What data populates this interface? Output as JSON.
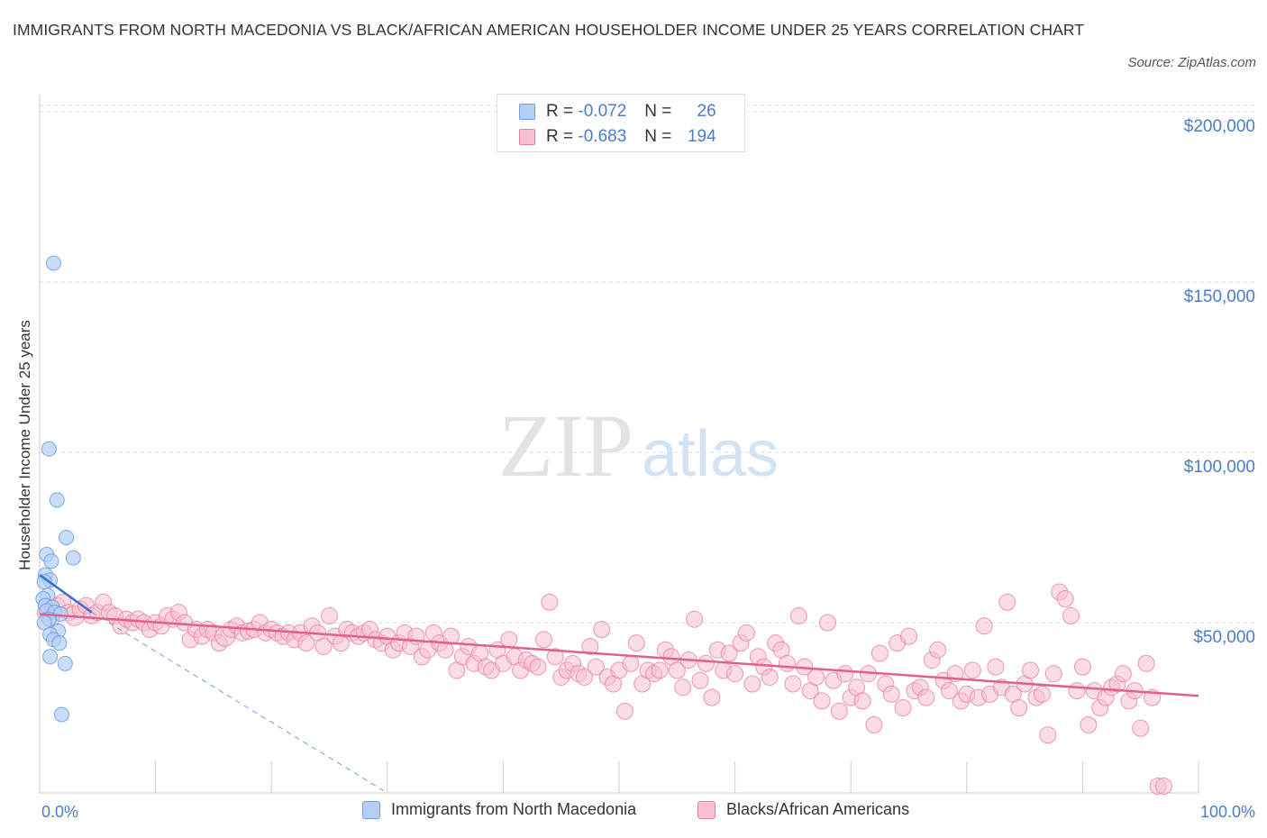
{
  "title": "IMMIGRANTS FROM NORTH MACEDONIA VS BLACK/AFRICAN AMERICAN HOUSEHOLDER INCOME UNDER 25 YEARS CORRELATION CHART",
  "source": "Source: ZipAtlas.com",
  "watermark": {
    "zip": "ZIP",
    "atlas": "atlas"
  },
  "legend": {
    "rows": [
      {
        "r_label": "R =",
        "r_value": "-0.072",
        "n_label": "N =",
        "n_value": "26",
        "color": "#b3cff5",
        "border": "#6f9ee0"
      },
      {
        "r_label": "R =",
        "r_value": "-0.683",
        "n_label": "N =",
        "n_value": "194",
        "color": "#f8c0d0",
        "border": "#e67fa0"
      }
    ]
  },
  "bottom_legend": [
    {
      "label": "Immigrants from North Macedonia",
      "color": "#b3cff5",
      "border": "#6f9ee0"
    },
    {
      "label": "Blacks/African Americans",
      "color": "#f8c0d0",
      "border": "#e67fa0"
    }
  ],
  "chart_data": {
    "type": "scatter",
    "title": "IMMIGRANTS FROM NORTH MACEDONIA VS BLACK/AFRICAN AMERICAN HOUSEHOLDER INCOME UNDER 25 YEARS CORRELATION CHART",
    "xlabel": "",
    "ylabel": "Householder Income Under 25 years",
    "xlim": [
      0,
      100
    ],
    "ylim": [
      0,
      205000
    ],
    "x_tick_labels": [
      {
        "x": 0,
        "label": "0.0%"
      },
      {
        "x": 100,
        "label": "100.0%"
      }
    ],
    "y_ticks": [
      {
        "y": 50000,
        "label": "$50,000"
      },
      {
        "y": 100000,
        "label": "$100,000"
      },
      {
        "y": 150000,
        "label": "$150,000"
      },
      {
        "y": 200000,
        "label": "$200,000"
      }
    ],
    "grid": true,
    "series": [
      {
        "name": "Immigrants from North Macedonia",
        "color": "#6f9ee0",
        "fill": "#b3cff5",
        "points": [
          [
            1.2,
            155500
          ],
          [
            0.8,
            101000
          ],
          [
            1.5,
            86000
          ],
          [
            2.3,
            75000
          ],
          [
            2.9,
            69000
          ],
          [
            0.6,
            70000
          ],
          [
            1.0,
            68000
          ],
          [
            0.5,
            64000
          ],
          [
            0.9,
            62500
          ],
          [
            0.4,
            62000
          ],
          [
            0.7,
            58000
          ],
          [
            0.3,
            57000
          ],
          [
            0.5,
            55000
          ],
          [
            1.1,
            54500
          ],
          [
            0.6,
            53500
          ],
          [
            1.3,
            53000
          ],
          [
            1.8,
            52500
          ],
          [
            0.8,
            51000
          ],
          [
            0.4,
            50000
          ],
          [
            1.6,
            47500
          ],
          [
            0.9,
            46500
          ],
          [
            1.2,
            45000
          ],
          [
            1.7,
            44000
          ],
          [
            0.9,
            40000
          ],
          [
            2.2,
            38000
          ],
          [
            1.9,
            23000
          ]
        ],
        "trend": {
          "x": [
            0,
            4.5
          ],
          "y": [
            64000,
            53000
          ]
        },
        "trend_extension": {
          "x": [
            4.5,
            30
          ],
          "y": [
            53000,
            0
          ]
        }
      },
      {
        "name": "Blacks/African Americans",
        "color": "#e67fa0",
        "fill": "#f8c0d0",
        "points": [
          [
            0.5,
            53000
          ],
          [
            1,
            51000
          ],
          [
            1.5,
            55000
          ],
          [
            2,
            56000
          ],
          [
            2.5,
            53000
          ],
          [
            3,
            52000
          ],
          [
            3.5,
            54000
          ],
          [
            4,
            55000
          ],
          [
            4.5,
            52000
          ],
          [
            5,
            53000
          ],
          [
            5.5,
            56000
          ],
          [
            6,
            53000
          ],
          [
            6.5,
            52000
          ],
          [
            7,
            49000
          ],
          [
            7.5,
            51000
          ],
          [
            8,
            50000
          ],
          [
            8.5,
            51000
          ],
          [
            9,
            50000
          ],
          [
            9.5,
            48000
          ],
          [
            10,
            50000
          ],
          [
            10.5,
            49000
          ],
          [
            11,
            52000
          ],
          [
            11.5,
            51000
          ],
          [
            12,
            53000
          ],
          [
            12.5,
            50000
          ],
          [
            13,
            45000
          ],
          [
            13.5,
            48000
          ],
          [
            14,
            46000
          ],
          [
            14.5,
            48000
          ],
          [
            15,
            47000
          ],
          [
            15.5,
            44000
          ],
          [
            16,
            46000
          ],
          [
            16.5,
            48000
          ],
          [
            17,
            49000
          ],
          [
            17.5,
            47000
          ],
          [
            18,
            47500
          ],
          [
            18.5,
            48000
          ],
          [
            19,
            50000
          ],
          [
            19.5,
            47000
          ],
          [
            20,
            48000
          ],
          [
            20.5,
            47000
          ],
          [
            21,
            46000
          ],
          [
            21.5,
            47000
          ],
          [
            22,
            45000
          ],
          [
            22.5,
            47000
          ],
          [
            23,
            44000
          ],
          [
            23.5,
            49000
          ],
          [
            24,
            47000
          ],
          [
            24.5,
            43000
          ],
          [
            25,
            52000
          ],
          [
            25.5,
            46000
          ],
          [
            26,
            44000
          ],
          [
            26.5,
            48000
          ],
          [
            27,
            47000
          ],
          [
            27.5,
            46000
          ],
          [
            28,
            47000
          ],
          [
            28.5,
            48000
          ],
          [
            29,
            45000
          ],
          [
            29.5,
            44000
          ],
          [
            30,
            46000
          ],
          [
            30.5,
            42000
          ],
          [
            31,
            44000
          ],
          [
            31.5,
            47000
          ],
          [
            32,
            43000
          ],
          [
            32.5,
            46000
          ],
          [
            33,
            40000
          ],
          [
            33.5,
            42000
          ],
          [
            34,
            47000
          ],
          [
            34.5,
            44000
          ],
          [
            35,
            42000
          ],
          [
            35.5,
            46000
          ],
          [
            36,
            36000
          ],
          [
            36.5,
            40000
          ],
          [
            37,
            43000
          ],
          [
            37.5,
            38000
          ],
          [
            38,
            41000
          ],
          [
            38.5,
            37000
          ],
          [
            39,
            36000
          ],
          [
            39.5,
            42000
          ],
          [
            40,
            38000
          ],
          [
            40.5,
            45000
          ],
          [
            41,
            40000
          ],
          [
            41.5,
            36000
          ],
          [
            42,
            39000
          ],
          [
            42.5,
            38000
          ],
          [
            43,
            37000
          ],
          [
            43.5,
            45000
          ],
          [
            44,
            56000
          ],
          [
            44.5,
            40000
          ],
          [
            45,
            34000
          ],
          [
            45.5,
            36000
          ],
          [
            46,
            38000
          ],
          [
            46.5,
            35000
          ],
          [
            47,
            34000
          ],
          [
            47.5,
            43000
          ],
          [
            48,
            37000
          ],
          [
            48.5,
            48000
          ],
          [
            49,
            34000
          ],
          [
            49.5,
            32000
          ],
          [
            50,
            36000
          ],
          [
            50.5,
            24000
          ],
          [
            51,
            38000
          ],
          [
            51.5,
            44000
          ],
          [
            52,
            32000
          ],
          [
            52.5,
            36000
          ],
          [
            53,
            35000
          ],
          [
            53.5,
            36000
          ],
          [
            54,
            42000
          ],
          [
            54.5,
            40000
          ],
          [
            55,
            36000
          ],
          [
            55.5,
            31000
          ],
          [
            56,
            39000
          ],
          [
            56.5,
            51000
          ],
          [
            57,
            33000
          ],
          [
            57.5,
            38000
          ],
          [
            58,
            28000
          ],
          [
            58.5,
            42000
          ],
          [
            59,
            36000
          ],
          [
            59.5,
            41000
          ],
          [
            60,
            35000
          ],
          [
            60.5,
            44000
          ],
          [
            61,
            47000
          ],
          [
            61.5,
            32000
          ],
          [
            62,
            40000
          ],
          [
            62.5,
            37000
          ],
          [
            63,
            34000
          ],
          [
            63.5,
            44000
          ],
          [
            64,
            42000
          ],
          [
            64.5,
            38000
          ],
          [
            65,
            32000
          ],
          [
            65.5,
            52000
          ],
          [
            66,
            37000
          ],
          [
            66.5,
            30000
          ],
          [
            67,
            34000
          ],
          [
            67.5,
            27000
          ],
          [
            68,
            50000
          ],
          [
            68.5,
            33000
          ],
          [
            69,
            24000
          ],
          [
            69.5,
            35000
          ],
          [
            70,
            28000
          ],
          [
            70.5,
            31000
          ],
          [
            71,
            27000
          ],
          [
            71.5,
            35000
          ],
          [
            72,
            20000
          ],
          [
            72.5,
            41000
          ],
          [
            73,
            32000
          ],
          [
            73.5,
            29000
          ],
          [
            74,
            44000
          ],
          [
            74.5,
            25000
          ],
          [
            75,
            46000
          ],
          [
            75.5,
            30000
          ],
          [
            76,
            31000
          ],
          [
            76.5,
            28000
          ],
          [
            77,
            39000
          ],
          [
            77.5,
            42000
          ],
          [
            78,
            33000
          ],
          [
            78.5,
            30000
          ],
          [
            79,
            35000
          ],
          [
            79.5,
            27000
          ],
          [
            80,
            29000
          ],
          [
            80.5,
            36000
          ],
          [
            81,
            28000
          ],
          [
            81.5,
            49000
          ],
          [
            82,
            29000
          ],
          [
            82.5,
            37000
          ],
          [
            83,
            31000
          ],
          [
            83.5,
            56000
          ],
          [
            84,
            29000
          ],
          [
            84.5,
            25000
          ],
          [
            85,
            32000
          ],
          [
            85.5,
            36000
          ],
          [
            86,
            28000
          ],
          [
            86.5,
            29000
          ],
          [
            87,
            17000
          ],
          [
            87.5,
            35000
          ],
          [
            88,
            59000
          ],
          [
            88.5,
            57000
          ],
          [
            89,
            52000
          ],
          [
            89.5,
            30000
          ],
          [
            90,
            37000
          ],
          [
            90.5,
            20000
          ],
          [
            91,
            30000
          ],
          [
            91.5,
            25000
          ],
          [
            92,
            28000
          ],
          [
            92.5,
            31000
          ],
          [
            93,
            32000
          ],
          [
            93.5,
            35000
          ],
          [
            94,
            27000
          ],
          [
            94.5,
            30000
          ],
          [
            95,
            19000
          ],
          [
            95.5,
            38000
          ],
          [
            96,
            28000
          ],
          [
            96.5,
            2000
          ],
          [
            97,
            2000
          ]
        ],
        "trend": {
          "x": [
            0,
            100
          ],
          "y": [
            52500,
            28500
          ]
        }
      }
    ]
  }
}
